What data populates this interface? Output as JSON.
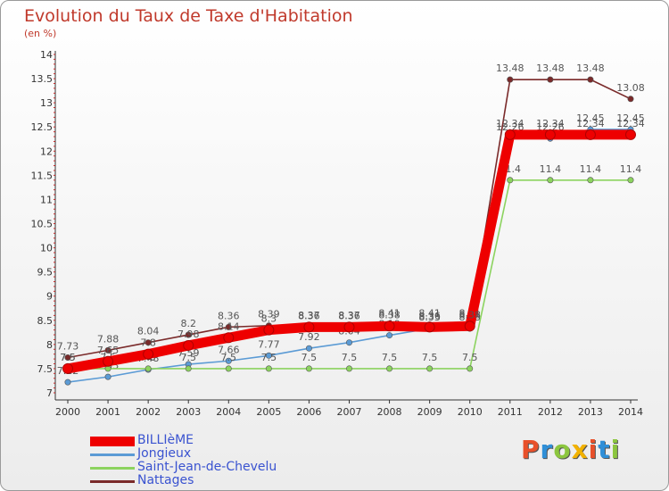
{
  "title": "Evolution du Taux de Taxe d'Habitation",
  "subtitle": "(en %)",
  "logo": {
    "text": "Proxiti",
    "colors": [
      "#e8502a",
      "#2f8fd8",
      "#8cc63f",
      "#f2b200",
      "#e8502a",
      "#2f8fd8",
      "#8cc63f"
    ]
  },
  "chart_data": {
    "type": "line",
    "x": [
      2000,
      2001,
      2002,
      2003,
      2004,
      2005,
      2006,
      2007,
      2008,
      2009,
      2010,
      2011,
      2012,
      2013,
      2014
    ],
    "ylim": [
      7,
      14
    ],
    "yticks": [
      "7",
      "7.5",
      "8",
      "8.5",
      "9",
      "9.5",
      "10",
      "10.5",
      "11",
      "11.5",
      "12",
      "12.5",
      "13",
      "13.5",
      "14"
    ],
    "grid": false,
    "legend_position": "bottom-left",
    "series": [
      {
        "name": "Nattages",
        "color": "#7a2a2a",
        "values": [
          7.73,
          7.88,
          8.04,
          8.2,
          8.36,
          8.39,
          8.37,
          8.37,
          8.41,
          8.41,
          8.41,
          13.48,
          13.48,
          13.48,
          13.08
        ],
        "labels": [
          "7.73",
          "7.88",
          "8.04",
          "8.2",
          "8.36",
          "8.39",
          "8.37",
          "8.37",
          "8.41",
          "8.41",
          "8.41",
          "13.48",
          "13.48",
          "13.48",
          "13.08"
        ]
      },
      {
        "name": "Jongieux",
        "color": "#5b9bd5",
        "values": [
          7.22,
          7.33,
          7.48,
          7.59,
          7.66,
          7.77,
          7.92,
          8.04,
          8.19,
          8.33,
          8.33,
          12.26,
          12.26,
          12.45,
          12.45
        ],
        "labels": [
          "7.22",
          "7.33",
          "7.48",
          "7.59",
          "7.66",
          "7.77",
          "7.92",
          "8.04",
          "8.19",
          "8.33",
          "8.33",
          "12.26",
          "12.26",
          "12.45",
          "12.45"
        ]
      },
      {
        "name": "Saint-Jean-de-Chevelu",
        "color": "#8cd35f",
        "values": [
          7.5,
          7.5,
          7.5,
          7.5,
          7.5,
          7.5,
          7.5,
          7.5,
          7.5,
          7.5,
          7.5,
          11.4,
          11.4,
          11.4,
          11.4
        ],
        "labels": [
          "7.5",
          "7.5",
          "7.5",
          "7.5",
          "7.5",
          "7.5",
          "7.5",
          "7.5",
          "7.5",
          "7.5",
          "7.5",
          "11.4",
          "11.4",
          "11.4",
          "11.4"
        ]
      },
      {
        "name": "BILLIèME",
        "color": "#ee0000",
        "values": [
          7.5,
          7.65,
          7.8,
          7.98,
          8.14,
          8.3,
          8.36,
          8.36,
          8.38,
          8.36,
          8.38,
          12.34,
          12.34,
          12.34,
          12.34
        ],
        "labels": [
          "7.5",
          "7.65",
          "7.8",
          "7.98",
          "8.14",
          "8.3",
          "8.36",
          "8.36",
          "8.38",
          "8.36",
          "8.38",
          "12.34",
          "12.34",
          "12.34",
          "12.34"
        ]
      }
    ],
    "legend": [
      {
        "name": "BILLIèME",
        "color": "#ee0000",
        "weight": "thick"
      },
      {
        "name": "Jongieux",
        "color": "#5b9bd5",
        "weight": "thin"
      },
      {
        "name": "Saint-Jean-de-Chevelu",
        "color": "#8cd35f",
        "weight": "thin"
      },
      {
        "name": "Nattages",
        "color": "#7a2a2a",
        "weight": "thin"
      }
    ]
  }
}
